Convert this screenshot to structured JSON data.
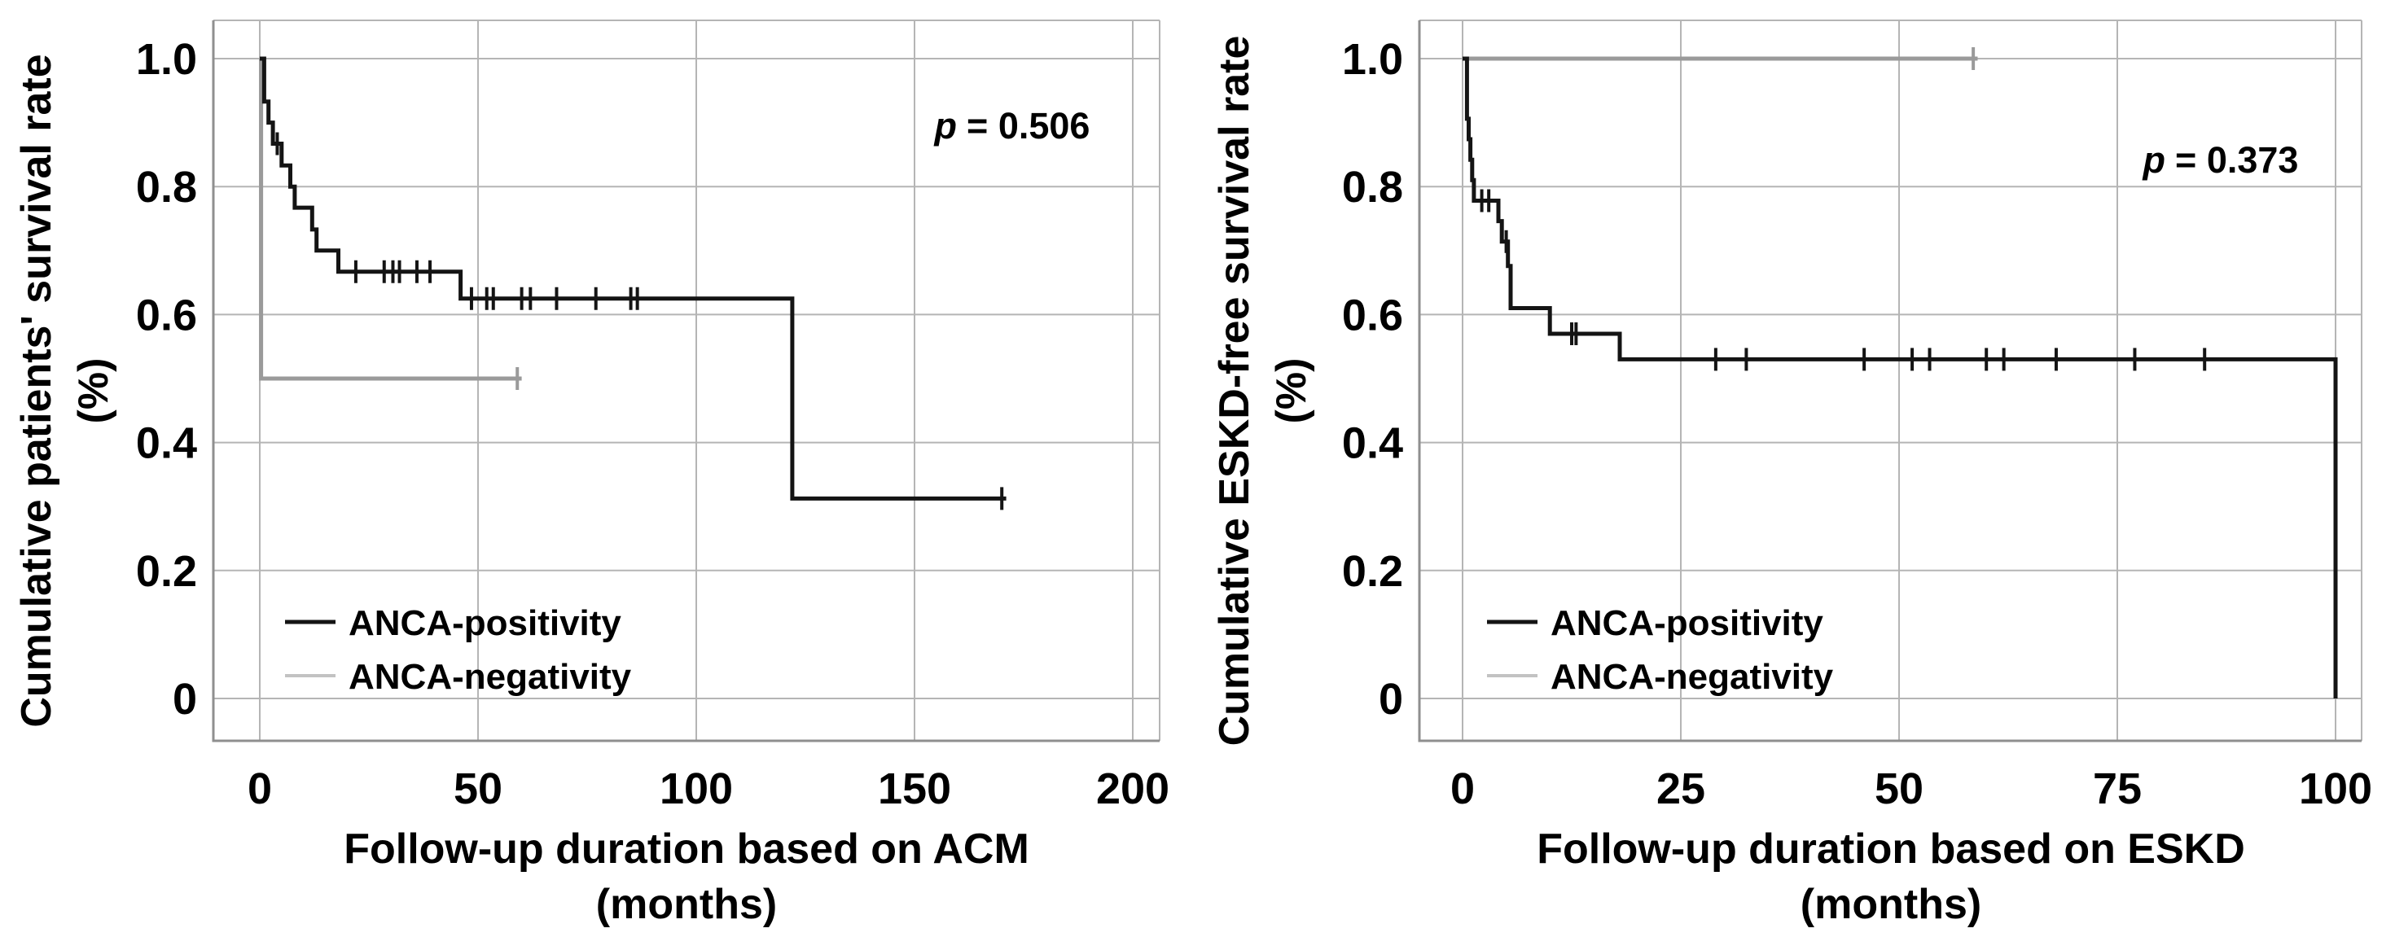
{
  "figure_type": "kaplan-meier-survival-curves",
  "colors": {
    "positivity_line": "#141414",
    "negativity_line": "#9a9a9a",
    "negativity_swatch": "#c2c2c2",
    "gridline": "#b5b5b5",
    "axis_line": "#8f8f8f",
    "text": "#000000",
    "background": "#ffffff"
  },
  "chart_data": [
    {
      "type": "line",
      "subtype": "kaplan-meier-step",
      "title": "",
      "xlabel": "Follow-up duration based on ACM (months)",
      "xlabel_lines": [
        "Follow-up duration based on ACM",
        "(months)"
      ],
      "ylabel": "Cumulative patients' survival rate (%)",
      "ylabel_lines": [
        "Cumulative patients' survival rate",
        "(%)"
      ],
      "annotation": "p = 0.506",
      "annotation_p": "p",
      "annotation_value": "= 0.506",
      "xlim": [
        0,
        200
      ],
      "ylim": [
        0,
        1.0
      ],
      "x_ticks": [
        0,
        50,
        100,
        150,
        200
      ],
      "y_ticks": [
        1.0,
        0.8,
        0.6,
        0.4,
        0.2,
        0
      ],
      "y_tick_labels": [
        "1.0",
        "0.8",
        "0.6",
        "0.4",
        "0.2",
        "0"
      ],
      "grid": true,
      "legend_position": "lower-left-inside",
      "series": [
        {
          "name": "ANCA-positivity",
          "color": "#141414",
          "legend_color": "#141414",
          "line_width": 5,
          "steps": [
            [
              0,
              1.0
            ],
            [
              1,
              0.933
            ],
            [
              2,
              0.9
            ],
            [
              3,
              0.867
            ],
            [
              5,
              0.833
            ],
            [
              7,
              0.8
            ],
            [
              8,
              0.767
            ],
            [
              12,
              0.733
            ],
            [
              13,
              0.7
            ],
            [
              18,
              0.667
            ],
            [
              46,
              0.625
            ],
            [
              122,
              0.3125
            ],
            [
              171,
              0.3125
            ]
          ],
          "censor_marks": [
            [
              4,
              0.867
            ],
            [
              22,
              0.667
            ],
            [
              28.5,
              0.667
            ],
            [
              30.5,
              0.667
            ],
            [
              32,
              0.667
            ],
            [
              36,
              0.667
            ],
            [
              39,
              0.667
            ],
            [
              48.5,
              0.625
            ],
            [
              52,
              0.625
            ],
            [
              53.5,
              0.625
            ],
            [
              60,
              0.625
            ],
            [
              62,
              0.625
            ],
            [
              68,
              0.625
            ],
            [
              77,
              0.625
            ],
            [
              85,
              0.625
            ],
            [
              86.5,
              0.625
            ],
            [
              170,
              0.3125
            ]
          ]
        },
        {
          "name": "ANCA-negativity",
          "color": "#9a9a9a",
          "legend_color": "#c2c2c2",
          "line_width": 5,
          "steps": [
            [
              0,
              1.0
            ],
            [
              0.3,
              0.5
            ],
            [
              60,
              0.5
            ]
          ],
          "censor_marks": [
            [
              59,
              0.5
            ]
          ]
        }
      ]
    },
    {
      "type": "line",
      "subtype": "kaplan-meier-step",
      "title": "",
      "xlabel": "Follow-up duration based on ESKD (months)",
      "xlabel_lines": [
        "Follow-up duration based on ESKD",
        "(months)"
      ],
      "ylabel": "Cumulative ESKD-free survival rate (%)",
      "ylabel_lines": [
        "Cumulative ESKD-free survival rate",
        "(%)"
      ],
      "annotation": "p = 0.373",
      "annotation_p": "p",
      "annotation_value": "= 0.373",
      "xlim": [
        0,
        100
      ],
      "ylim": [
        0,
        1.0
      ],
      "x_ticks": [
        0,
        25,
        50,
        75,
        100
      ],
      "y_ticks": [
        1.0,
        0.8,
        0.6,
        0.4,
        0.2,
        0
      ],
      "y_tick_labels": [
        "1.0",
        "0.8",
        "0.6",
        "0.4",
        "0.2",
        "0"
      ],
      "grid": true,
      "legend_position": "lower-left-inside",
      "series": [
        {
          "name": "ANCA-positivity",
          "color": "#141414",
          "legend_color": "#141414",
          "line_width": 5,
          "steps": [
            [
              0,
              1.0
            ],
            [
              0.5,
              0.906
            ],
            [
              0.7,
              0.874
            ],
            [
              0.9,
              0.842
            ],
            [
              1.1,
              0.81
            ],
            [
              1.3,
              0.778
            ],
            [
              4.1,
              0.746
            ],
            [
              4.5,
              0.714
            ],
            [
              5.2,
              0.676
            ],
            [
              5.5,
              0.61
            ],
            [
              10,
              0.57
            ],
            [
              18,
              0.53
            ],
            [
              100,
              0.53
            ],
            [
              100,
              0
            ]
          ],
          "censor_marks": [
            [
              2.2,
              0.778
            ],
            [
              3,
              0.778
            ],
            [
              5,
              0.714
            ],
            [
              12.5,
              0.57
            ],
            [
              13,
              0.57
            ],
            [
              29,
              0.53
            ],
            [
              32.5,
              0.53
            ],
            [
              46,
              0.53
            ],
            [
              51.5,
              0.53
            ],
            [
              53.5,
              0.53
            ],
            [
              60,
              0.53
            ],
            [
              62,
              0.53
            ],
            [
              68,
              0.53
            ],
            [
              77,
              0.53
            ],
            [
              85,
              0.53
            ]
          ]
        },
        {
          "name": "ANCA-negativity",
          "color": "#9a9a9a",
          "legend_color": "#c2c2c2",
          "line_width": 5,
          "steps": [
            [
              0,
              1.0
            ],
            [
              59,
              1.0
            ]
          ],
          "censor_marks": [
            [
              58.5,
              1.0
            ]
          ]
        }
      ]
    }
  ]
}
